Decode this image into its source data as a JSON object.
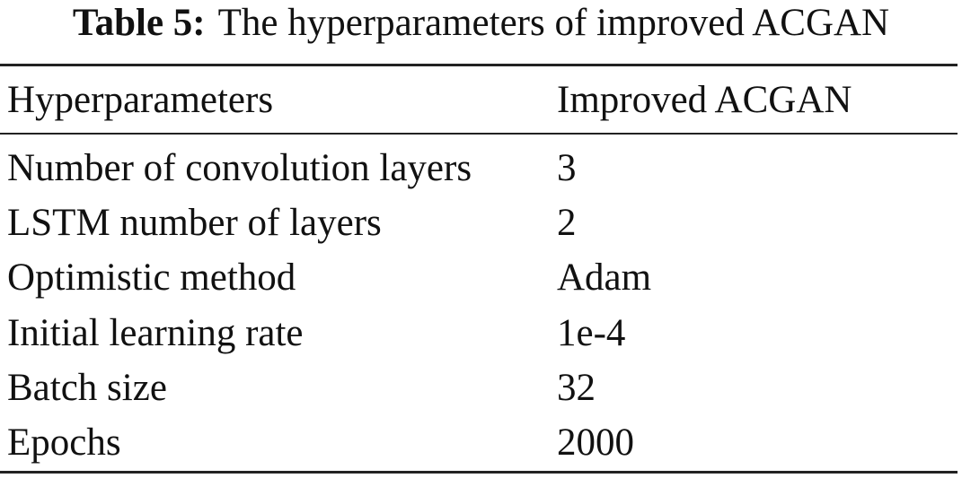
{
  "caption": {
    "label": "Table 5:",
    "text": "The hyperparameters of improved ACGAN"
  },
  "table": {
    "header": [
      "Hyperparameters",
      "Improved ACGAN"
    ],
    "rows": [
      [
        "Number of convolution layers",
        "3"
      ],
      [
        "LSTM number of layers",
        "2"
      ],
      [
        "Optimistic method",
        "Adam"
      ],
      [
        "Initial learning rate",
        "1e-4"
      ],
      [
        "Batch size",
        "32"
      ],
      [
        "Epochs",
        "2000"
      ]
    ]
  }
}
